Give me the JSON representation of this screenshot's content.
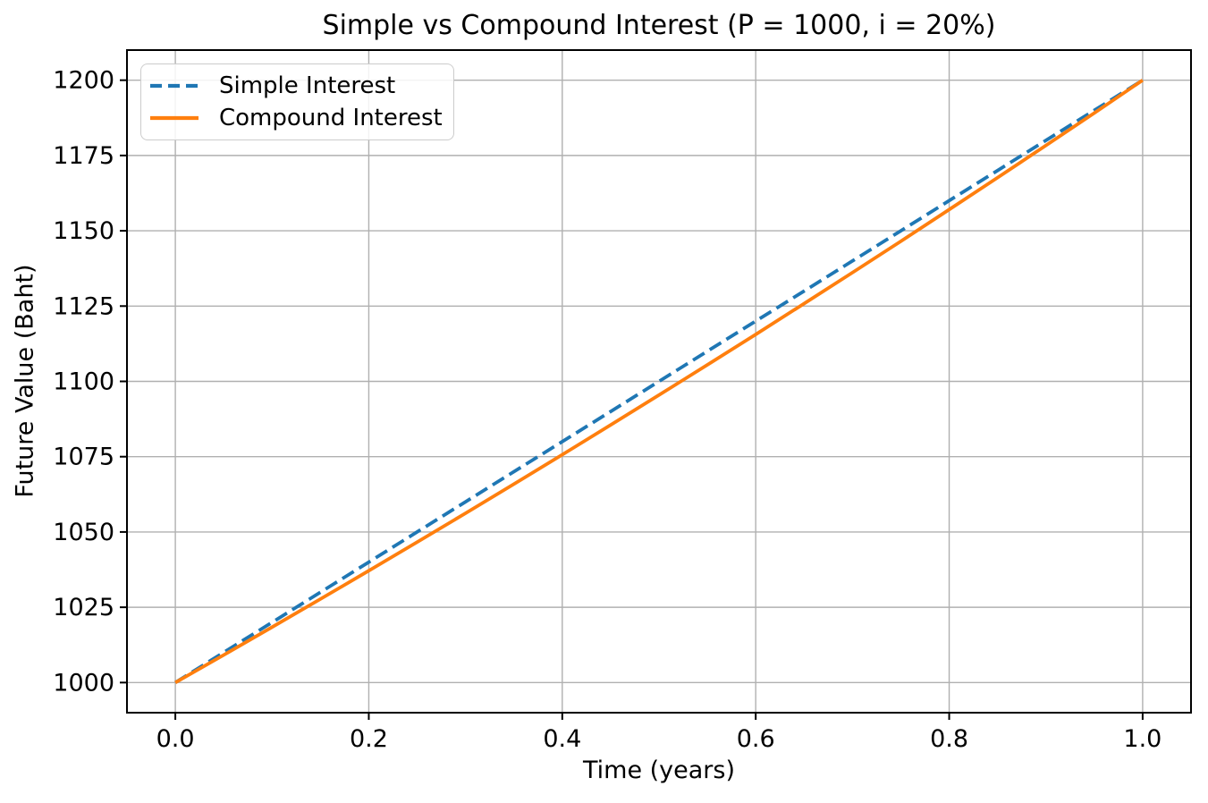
{
  "figure": {
    "background": "#ffffff",
    "text_color": "#000000"
  },
  "chart_data": {
    "type": "line",
    "title": "Simple vs Compound Interest (P = 1000, i = 20%)",
    "xlabel": "Time (years)",
    "ylabel": "Future Value (Baht)",
    "x": [
      0,
      0.05,
      0.1,
      0.15,
      0.2,
      0.25,
      0.3,
      0.35,
      0.4,
      0.45,
      0.5,
      0.55,
      0.6,
      0.65,
      0.7,
      0.75,
      0.8,
      0.85,
      0.9,
      0.95,
      1.0
    ],
    "series": [
      {
        "name": "Simple Interest",
        "color": "#1f77b4",
        "line_style": "dashed",
        "values": [
          1000,
          1010,
          1020,
          1030,
          1040,
          1050,
          1060,
          1070,
          1080,
          1090,
          1100,
          1110,
          1120,
          1130,
          1140,
          1150,
          1160,
          1170,
          1180,
          1190,
          1200
        ]
      },
      {
        "name": "Compound Interest",
        "color": "#ff7f0e",
        "line_style": "solid",
        "values": [
          1000,
          1009.16,
          1018.4,
          1027.73,
          1037.14,
          1046.64,
          1056.22,
          1065.89,
          1075.65,
          1085.5,
          1095.45,
          1105.48,
          1115.6,
          1125.82,
          1136.13,
          1146.53,
          1157.03,
          1167.63,
          1178.32,
          1189.11,
          1200
        ]
      }
    ],
    "xticks": {
      "values": [
        0.0,
        0.2,
        0.4,
        0.6,
        0.8,
        1.0
      ],
      "labels": [
        "0.0",
        "0.2",
        "0.4",
        "0.6",
        "0.8",
        "1.0"
      ]
    },
    "yticks": {
      "values": [
        1000,
        1025,
        1050,
        1075,
        1100,
        1125,
        1150,
        1175,
        1200
      ],
      "labels": [
        "1000",
        "1025",
        "1050",
        "1075",
        "1100",
        "1125",
        "1150",
        "1175",
        "1200"
      ]
    },
    "xlim": [
      -0.05,
      1.05
    ],
    "ylim": [
      990,
      1210
    ],
    "grid": true,
    "grid_color": "#b0b0b0",
    "axis_color": "#000000",
    "legend_position": "upper left"
  }
}
